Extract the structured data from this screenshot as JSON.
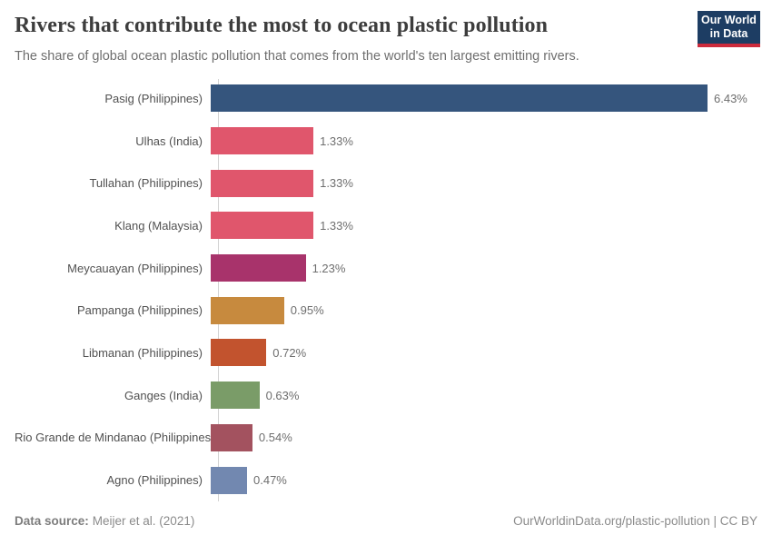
{
  "header": {
    "title": "Rivers that contribute the most to ocean plastic pollution",
    "subtitle": "The share of global ocean plastic pollution that comes from the world's ten largest emitting rivers.",
    "logo": {
      "line1": "Our World",
      "line2": "in Data",
      "bg_color": "#1d3d63",
      "accent_color": "#cc2b3c"
    }
  },
  "chart_data": {
    "type": "bar",
    "orientation": "horizontal",
    "title": "Rivers that contribute the most to ocean plastic pollution",
    "subtitle": "The share of global ocean plastic pollution that comes from the world's ten largest emitting rivers.",
    "categories": [
      "Pasig (Philippines)",
      "Ulhas (India)",
      "Tullahan (Philippines)",
      "Klang (Malaysia)",
      "Meycauayan (Philippines)",
      "Pampanga (Philippines)",
      "Libmanan (Philippines)",
      "Ganges (India)",
      "Rio Grande de Mindanao (Philippines)",
      "Agno (Philippines)"
    ],
    "values": [
      6.43,
      1.33,
      1.33,
      1.33,
      1.23,
      0.95,
      0.72,
      0.63,
      0.54,
      0.47
    ],
    "value_labels": [
      "6.43%",
      "1.33%",
      "1.33%",
      "1.33%",
      "1.23%",
      "0.95%",
      "0.72%",
      "0.63%",
      "0.54%",
      "0.47%"
    ],
    "bar_colors": [
      "#35557d",
      "#e0566c",
      "#e0566c",
      "#e0566c",
      "#a8336b",
      "#c78a3e",
      "#c2532e",
      "#7a9c68",
      "#a3525f",
      "#7288b0"
    ],
    "unit": "%",
    "xlabel": "",
    "ylabel": "",
    "xlim": [
      0,
      6.43
    ],
    "grid": false,
    "legend": false,
    "axis_line_color": "#d3d3d3"
  },
  "footer": {
    "source_label": "Data source:",
    "source_value": "Meijer et al. (2021)",
    "right_text": "OurWorldinData.org/plastic-pollution | CC BY"
  }
}
